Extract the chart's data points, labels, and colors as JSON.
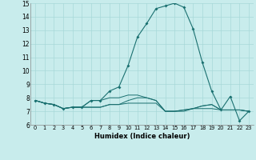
{
  "xlabel": "Humidex (Indice chaleur)",
  "xlim": [
    -0.5,
    23.5
  ],
  "ylim": [
    6,
    15
  ],
  "yticks": [
    6,
    7,
    8,
    9,
    10,
    11,
    12,
    13,
    14,
    15
  ],
  "xticks": [
    0,
    1,
    2,
    3,
    4,
    5,
    6,
    7,
    8,
    9,
    10,
    11,
    12,
    13,
    14,
    15,
    16,
    17,
    18,
    19,
    20,
    21,
    22,
    23
  ],
  "xtick_labels": [
    "0",
    "1",
    "2",
    "3",
    "4",
    "5",
    "6",
    "7",
    "8",
    "9",
    "10",
    "11",
    "12",
    "13",
    "14",
    "15",
    "16",
    "17",
    "18",
    "19",
    "20",
    "21",
    "22",
    "23"
  ],
  "background_color": "#c8ecec",
  "grid_color": "#a8d8d8",
  "line_color": "#1a7070",
  "lines": [
    [
      7.8,
      7.6,
      7.5,
      7.2,
      7.3,
      7.3,
      7.8,
      7.8,
      8.5,
      8.8,
      10.4,
      12.5,
      13.5,
      14.6,
      14.8,
      15.0,
      14.7,
      13.1,
      10.6,
      8.5,
      7.1,
      8.1,
      6.3,
      7.0
    ],
    [
      7.8,
      7.6,
      7.5,
      7.2,
      7.3,
      7.3,
      7.8,
      7.8,
      8.0,
      8.0,
      8.2,
      8.2,
      8.0,
      7.8,
      7.0,
      7.0,
      7.0,
      7.2,
      7.2,
      7.2,
      7.1,
      7.1,
      7.1,
      7.0
    ],
    [
      7.8,
      7.6,
      7.5,
      7.2,
      7.3,
      7.3,
      7.3,
      7.3,
      7.5,
      7.5,
      7.6,
      7.6,
      7.6,
      7.6,
      7.0,
      7.0,
      7.1,
      7.2,
      7.4,
      7.5,
      7.1,
      7.1,
      7.1,
      7.0
    ],
    [
      7.8,
      7.6,
      7.5,
      7.2,
      7.3,
      7.3,
      7.3,
      7.3,
      7.5,
      7.5,
      7.8,
      8.0,
      8.0,
      7.8,
      7.0,
      7.0,
      7.1,
      7.2,
      7.4,
      7.5,
      7.1,
      7.1,
      7.1,
      7.0
    ]
  ]
}
